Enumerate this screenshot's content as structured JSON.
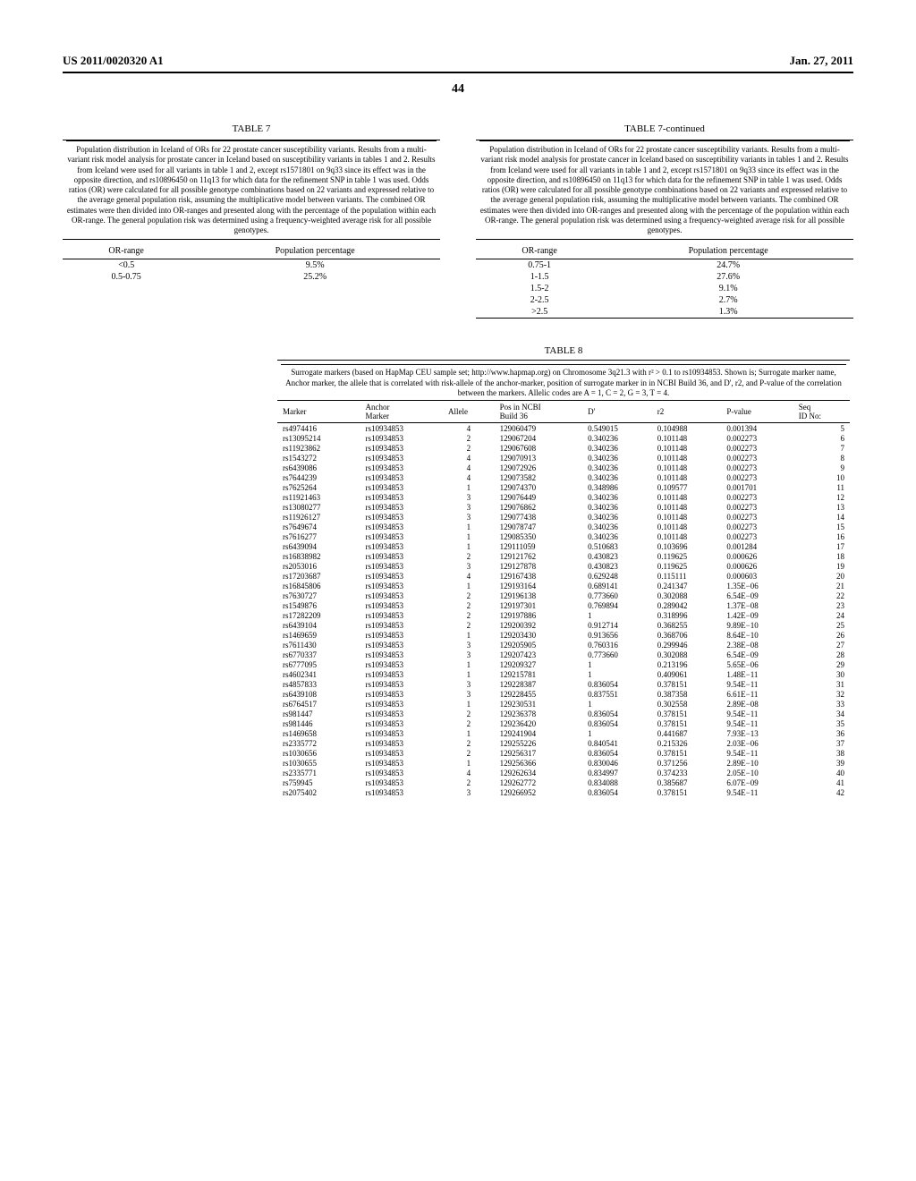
{
  "header": {
    "left": "US 2011/0020320 A1",
    "right": "Jan. 27, 2011",
    "page": "44"
  },
  "table7": {
    "title_left": "TABLE 7",
    "title_right": "TABLE 7-continued",
    "caption": "Population distribution in Iceland of ORs for 22 prostate cancer susceptibility variants.\nResults from a multi-variant risk model analysis for prostate cancer in Iceland based on susceptibility variants in tables 1 and 2. Results from Iceland were used for all variants in table 1 and 2, except rs1571801 on 9q33 since its effect was in the opposite direction, and rs10896450 on 11q13 for which data for the refinement SNP in table 1 was used. Odds ratios (OR) were calculated for all possible genotype combinations based on 22 variants and expressed relative to the average general population risk, assuming the multiplicative model between variants. The combined OR estimates were then divided into OR-ranges and presented along with the percentage of the population within each OR-range. The general population risk was determined using a frequency-weighted average risk for all possible genotypes.",
    "header_or": "OR-range",
    "header_pop": "Population percentage",
    "left_rows": [
      {
        "or": "<0.5",
        "pop": "9.5%"
      },
      {
        "or": "0.5-0.75",
        "pop": "25.2%"
      }
    ],
    "right_rows": [
      {
        "or": "0.75-1",
        "pop": "24.7%"
      },
      {
        "or": "1-1.5",
        "pop": "27.6%"
      },
      {
        "or": "1.5-2",
        "pop": "9.1%"
      },
      {
        "or": "2-2.5",
        "pop": "2.7%"
      },
      {
        "or": ">2.5",
        "pop": "1.3%"
      }
    ]
  },
  "table8": {
    "title": "TABLE 8",
    "caption": "Surrogate markers (based on HapMap CEU sample set; http://www.hapmap.org) on Chromosome 3q21.3 with r² > 0.1 to rs10934853. Shown is; Surrogate marker name, Anchor marker, the allele that is correlated with risk-allele of the anchor-marker, position of surrogate marker in in NCBI Build 36, and D', r2, and P-value of the correlation between the markers. Allelic codes are A = 1, C = 2, G = 3, T = 4.",
    "columns": [
      "Marker",
      "Anchor Marker",
      "Allele",
      "Pos in NCBI Build 36",
      "D'",
      "r2",
      "P-value",
      "Seq ID No:"
    ],
    "rows": [
      [
        "rs4974416",
        "rs10934853",
        "4",
        "129060479",
        "0.549015",
        "0.104988",
        "0.001394",
        "5"
      ],
      [
        "rs13095214",
        "rs10934853",
        "2",
        "129067204",
        "0.340236",
        "0.101148",
        "0.002273",
        "6"
      ],
      [
        "rs11923862",
        "rs10934853",
        "2",
        "129067608",
        "0.340236",
        "0.101148",
        "0.002273",
        "7"
      ],
      [
        "rs1543272",
        "rs10934853",
        "4",
        "129070913",
        "0.340236",
        "0.101148",
        "0.002273",
        "8"
      ],
      [
        "rs6439086",
        "rs10934853",
        "4",
        "129072926",
        "0.340236",
        "0.101148",
        "0.002273",
        "9"
      ],
      [
        "rs7644239",
        "rs10934853",
        "4",
        "129073582",
        "0.340236",
        "0.101148",
        "0.002273",
        "10"
      ],
      [
        "rs7625264",
        "rs10934853",
        "1",
        "129074370",
        "0.348986",
        "0.109577",
        "0.001701",
        "11"
      ],
      [
        "rs11921463",
        "rs10934853",
        "3",
        "129076449",
        "0.340236",
        "0.101148",
        "0.002273",
        "12"
      ],
      [
        "rs13080277",
        "rs10934853",
        "3",
        "129076862",
        "0.340236",
        "0.101148",
        "0.002273",
        "13"
      ],
      [
        "rs11926127",
        "rs10934853",
        "3",
        "129077438",
        "0.340236",
        "0.101148",
        "0.002273",
        "14"
      ],
      [
        "rs7649674",
        "rs10934853",
        "1",
        "129078747",
        "0.340236",
        "0.101148",
        "0.002273",
        "15"
      ],
      [
        "rs7616277",
        "rs10934853",
        "1",
        "129085350",
        "0.340236",
        "0.101148",
        "0.002273",
        "16"
      ],
      [
        "rs6439094",
        "rs10934853",
        "1",
        "129111059",
        "0.510683",
        "0.103696",
        "0.001284",
        "17"
      ],
      [
        "rs16838982",
        "rs10934853",
        "2",
        "129121762",
        "0.430823",
        "0.119625",
        "0.000626",
        "18"
      ],
      [
        "rs2053016",
        "rs10934853",
        "3",
        "129127878",
        "0.430823",
        "0.119625",
        "0.000626",
        "19"
      ],
      [
        "rs17203687",
        "rs10934853",
        "4",
        "129167438",
        "0.629248",
        "0.115111",
        "0.000603",
        "20"
      ],
      [
        "rs16845806",
        "rs10934853",
        "1",
        "129193164",
        "0.689141",
        "0.241347",
        "1.35E−06",
        "21"
      ],
      [
        "rs7630727",
        "rs10934853",
        "2",
        "129196138",
        "0.773660",
        "0.302088",
        "6.54E−09",
        "22"
      ],
      [
        "rs1549876",
        "rs10934853",
        "2",
        "129197301",
        "0.769894",
        "0.289042",
        "1.37E−08",
        "23"
      ],
      [
        "rs17282209",
        "rs10934853",
        "2",
        "129197886",
        "1",
        "0.318996",
        "1.42E−09",
        "24"
      ],
      [
        "rs6439104",
        "rs10934853",
        "2",
        "129200392",
        "0.912714",
        "0.368255",
        "9.89E−10",
        "25"
      ],
      [
        "rs1469659",
        "rs10934853",
        "1",
        "129203430",
        "0.913656",
        "0.368706",
        "8.64E−10",
        "26"
      ],
      [
        "rs7611430",
        "rs10934853",
        "3",
        "129205905",
        "0.760316",
        "0.299946",
        "2.38E−08",
        "27"
      ],
      [
        "rs6770337",
        "rs10934853",
        "3",
        "129207423",
        "0.773660",
        "0.302088",
        "6.54E−09",
        "28"
      ],
      [
        "rs6777095",
        "rs10934853",
        "1",
        "129209327",
        "1",
        "0.213196",
        "5.65E−06",
        "29"
      ],
      [
        "rs4602341",
        "rs10934853",
        "1",
        "129215781",
        "1",
        "0.409061",
        "1.48E−11",
        "30"
      ],
      [
        "rs4857833",
        "rs10934853",
        "3",
        "129228387",
        "0.836054",
        "0.378151",
        "9.54E−11",
        "31"
      ],
      [
        "rs6439108",
        "rs10934853",
        "3",
        "129228455",
        "0.837551",
        "0.387358",
        "6.61E−11",
        "32"
      ],
      [
        "rs6764517",
        "rs10934853",
        "1",
        "129230531",
        "1",
        "0.302558",
        "2.89E−08",
        "33"
      ],
      [
        "rs981447",
        "rs10934853",
        "2",
        "129236378",
        "0.836054",
        "0.378151",
        "9.54E−11",
        "34"
      ],
      [
        "rs981446",
        "rs10934853",
        "2",
        "129236420",
        "0.836054",
        "0.378151",
        "9.54E−11",
        "35"
      ],
      [
        "rs1469658",
        "rs10934853",
        "1",
        "129241904",
        "1",
        "0.441687",
        "7.93E−13",
        "36"
      ],
      [
        "rs2335772",
        "rs10934853",
        "2",
        "129255226",
        "0.840541",
        "0.215326",
        "2.03E−06",
        "37"
      ],
      [
        "rs1030656",
        "rs10934853",
        "2",
        "129256317",
        "0.836054",
        "0.378151",
        "9.54E−11",
        "38"
      ],
      [
        "rs1030655",
        "rs10934853",
        "1",
        "129256366",
        "0.830046",
        "0.371256",
        "2.89E−10",
        "39"
      ],
      [
        "rs2335771",
        "rs10934853",
        "4",
        "129262634",
        "0.834997",
        "0.374233",
        "2.05E−10",
        "40"
      ],
      [
        "rs759945",
        "rs10934853",
        "2",
        "129262772",
        "0.834088",
        "0.385687",
        "6.07E−09",
        "41"
      ],
      [
        "rs2075402",
        "rs10934853",
        "3",
        "129266952",
        "0.836054",
        "0.378151",
        "9.54E−11",
        "42"
      ]
    ]
  }
}
